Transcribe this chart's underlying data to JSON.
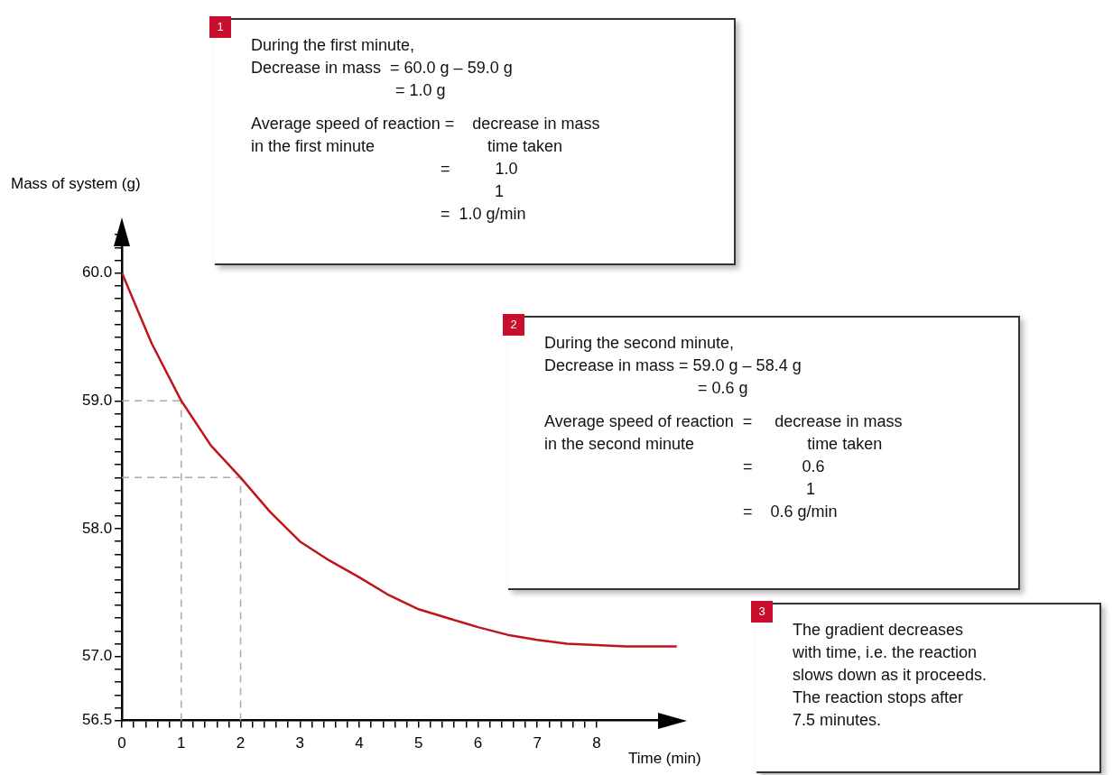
{
  "chart_data": {
    "type": "line",
    "xlabel": "Time (min)",
    "ylabel": "Mass of system (g)",
    "x": [
      0,
      0.5,
      1,
      1.5,
      2,
      2.5,
      3,
      3.5,
      4,
      4.5,
      5,
      5.5,
      6,
      6.5,
      7,
      7.5,
      8,
      8.5,
      9,
      9.35
    ],
    "series": [
      {
        "color": "#c0141e",
        "values": [
          60.0,
          59.45,
          59.0,
          58.65,
          58.4,
          58.13,
          57.9,
          57.75,
          57.62,
          57.48,
          57.37,
          57.3,
          57.23,
          57.17,
          57.13,
          57.1,
          57.09,
          57.08,
          57.08,
          57.08
        ]
      }
    ],
    "xlim": [
      0,
      9.4
    ],
    "ylim": [
      56.5,
      60.35
    ],
    "xticks": [
      0,
      {
        "value": 0.2,
        "label": null
      },
      {
        "value": 0.4,
        "label": null
      },
      {
        "value": 0.6,
        "label": null
      },
      {
        "value": 0.8,
        "label": null
      },
      1,
      {
        "value": 1.2,
        "label": null
      },
      {
        "value": 1.4,
        "label": null
      },
      {
        "value": 1.6,
        "label": null
      },
      {
        "value": 1.8,
        "label": null
      },
      2,
      {
        "value": 2.2,
        "label": null
      },
      {
        "value": 2.4,
        "label": null
      },
      {
        "value": 2.6,
        "label": null
      },
      {
        "value": 2.8,
        "label": null
      },
      3,
      {
        "value": 3.2,
        "label": null
      },
      {
        "value": 3.4,
        "label": null
      },
      {
        "value": 3.6,
        "label": null
      },
      {
        "value": 3.8,
        "label": null
      },
      4,
      {
        "value": 4.2,
        "label": null
      },
      {
        "value": 4.4,
        "label": null
      },
      {
        "value": 4.6,
        "label": null
      },
      {
        "value": 4.8,
        "label": null
      },
      5,
      {
        "value": 5.2,
        "label": null
      },
      {
        "value": 5.4,
        "label": null
      },
      {
        "value": 5.6,
        "label": null
      },
      {
        "value": 5.8,
        "label": null
      },
      6,
      {
        "value": 6.2,
        "label": null
      },
      {
        "value": 6.4,
        "label": null
      },
      {
        "value": 6.6,
        "label": null
      },
      {
        "value": 6.8,
        "label": null
      },
      7,
      {
        "value": 7.2,
        "label": null
      },
      {
        "value": 7.4,
        "label": null
      },
      {
        "value": 7.6,
        "label": null
      },
      {
        "value": 7.8,
        "label": null
      },
      8
    ],
    "yticks": [
      {
        "value": 56.5,
        "label": "56.5"
      },
      {
        "value": 56.6,
        "label": null
      },
      {
        "value": 56.7,
        "label": null
      },
      {
        "value": 56.8,
        "label": null
      },
      {
        "value": 56.9,
        "label": null
      },
      {
        "value": 57.0,
        "label": "57.0"
      },
      {
        "value": 57.1,
        "label": null
      },
      {
        "value": 57.2,
        "label": null
      },
      {
        "value": 57.3,
        "label": null
      },
      {
        "value": 57.4,
        "label": null
      },
      {
        "value": 57.5,
        "label": null
      },
      {
        "value": 57.6,
        "label": null
      },
      {
        "value": 57.7,
        "label": null
      },
      {
        "value": 57.8,
        "label": null
      },
      {
        "value": 57.9,
        "label": null
      },
      {
        "value": 58.0,
        "label": "58.0"
      },
      {
        "value": 58.1,
        "label": null
      },
      {
        "value": 58.2,
        "label": null
      },
      {
        "value": 58.3,
        "label": null
      },
      {
        "value": 58.4,
        "label": null
      },
      {
        "value": 58.5,
        "label": null
      },
      {
        "value": 58.6,
        "label": null
      },
      {
        "value": 58.7,
        "label": null
      },
      {
        "value": 58.8,
        "label": null
      },
      {
        "value": 58.9,
        "label": null
      },
      {
        "value": 59.0,
        "label": "59.0"
      },
      {
        "value": 59.1,
        "label": null
      },
      {
        "value": 59.2,
        "label": null
      },
      {
        "value": 59.3,
        "label": null
      },
      {
        "value": 59.4,
        "label": null
      },
      {
        "value": 59.5,
        "label": null
      },
      {
        "value": 59.6,
        "label": null
      },
      {
        "value": 59.7,
        "label": null
      },
      {
        "value": 59.8,
        "label": null
      },
      {
        "value": 59.9,
        "label": null
      },
      {
        "value": 60.0,
        "label": "60.0"
      },
      {
        "value": 60.1,
        "label": null
      },
      {
        "value": 60.2,
        "label": null
      },
      {
        "value": 60.3,
        "label": null
      }
    ],
    "ref_lines": [
      {
        "axis": "y",
        "value": 59.0,
        "color": "#aaaaaa",
        "line_style": "dashed"
      },
      {
        "axis": "y",
        "value": 58.4,
        "color": "#aaaaaa",
        "line_style": "dashed"
      },
      {
        "axis": "x",
        "value": 1,
        "color": "#aaaaaa",
        "line_style": "dashed"
      },
      {
        "axis": "x",
        "value": 2,
        "color": "#aaaaaa",
        "line_style": "dashed"
      }
    ],
    "annotations": [
      "1\nDuring the first minute,\nDecrease in mass  = 60.0 g – 59.0 g\n                                = 1.0 g\n\nAverage speed of reaction =    decrease in mass\nin the first minute                         time taken\n                                          =          1.0\n                                                      1\n                                          =  1.0 g/min",
      "2\nDuring the second minute,\nDecrease in mass = 59.0 g – 58.4 g\n                                  = 0.6 g\n\nAverage speed of reaction  =     decrease in mass\nin the second minute                         time taken\n                                            =           0.6\n                                                          1\n                                            =    0.6 g/min",
      "3\nThe gradient decreases\nwith time, i.e. the reaction\nslows down as it proceeds.\nThe reaction stops after\n7.5 minutes."
    ],
    "legend": false,
    "grid": false,
    "marker": "none",
    "line_style": "solid"
  }
}
